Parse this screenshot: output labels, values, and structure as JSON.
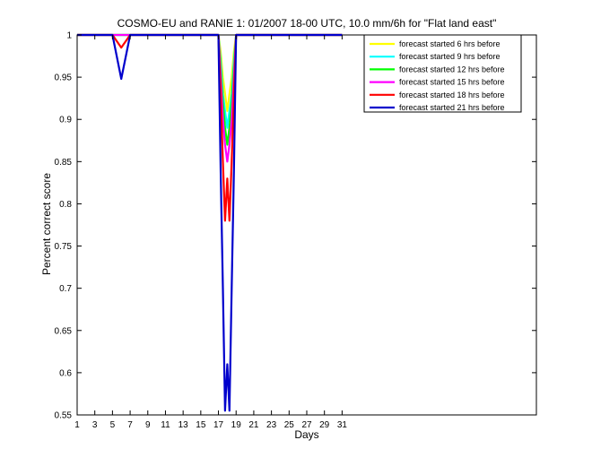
{
  "chart_data": {
    "type": "line",
    "title": "COSMO-EU and RANIE 1: 01/2007 18-00 UTC, 10.0 mm/6h for \"Flat land east\"",
    "xlabel": "Days",
    "ylabel": "Percent correct score",
    "xlim": [
      1,
      53
    ],
    "ylim": [
      0.55,
      1
    ],
    "xticks": [
      "1",
      "3",
      "5",
      "7",
      "9",
      "11",
      "13",
      "15",
      "17",
      "19",
      "21",
      "23",
      "25",
      "27",
      "29",
      "31"
    ],
    "yticks": [
      "0.55",
      "0.6",
      "0.65",
      "0.7",
      "0.75",
      "0.8",
      "0.85",
      "0.9",
      "0.95",
      "1"
    ],
    "grid": false,
    "legend_position": "top-right",
    "x": [
      1,
      2,
      3,
      4,
      5,
      6,
      7,
      8,
      9,
      10,
      11,
      12,
      13,
      14,
      15,
      16,
      17,
      17.25,
      17.5,
      17.75,
      18,
      18.25,
      18.5,
      18.75,
      19,
      20,
      21,
      22,
      23,
      24,
      25,
      26,
      27,
      28,
      29,
      30,
      31
    ],
    "series": [
      {
        "name": "forecast started 6 hrs before",
        "color": "#ffff00",
        "values": [
          1,
          1,
          1,
          1,
          1,
          1,
          1,
          1,
          1,
          1,
          1,
          1,
          1,
          1,
          1,
          1,
          1,
          0.98,
          0.95,
          0.93,
          0.91,
          0.93,
          0.95,
          0.98,
          1,
          1,
          1,
          1,
          1,
          1,
          1,
          1,
          1,
          1,
          1,
          1,
          1
        ]
      },
      {
        "name": "forecast started 9 hrs before",
        "color": "#00ffff",
        "values": [
          1,
          1,
          1,
          1,
          1,
          1,
          1,
          1,
          1,
          1,
          1,
          1,
          1,
          1,
          1,
          1,
          1,
          0.97,
          0.93,
          0.91,
          0.89,
          0.91,
          0.93,
          0.97,
          1,
          1,
          1,
          1,
          1,
          1,
          1,
          1,
          1,
          1,
          1,
          1,
          1
        ]
      },
      {
        "name": "forecast started 12 hrs before",
        "color": "#00ff00",
        "values": [
          1,
          1,
          1,
          1,
          1,
          1,
          1,
          1,
          1,
          1,
          1,
          1,
          1,
          1,
          1,
          1,
          1,
          0.96,
          0.92,
          0.89,
          0.87,
          0.89,
          0.92,
          0.96,
          1,
          1,
          1,
          1,
          1,
          1,
          1,
          1,
          1,
          1,
          1,
          1,
          1
        ]
      },
      {
        "name": "forecast started 15 hrs before",
        "color": "#ff00ff",
        "values": [
          1,
          1,
          1,
          1,
          1,
          1,
          1,
          1,
          1,
          1,
          1,
          1,
          1,
          1,
          1,
          1,
          1,
          0.95,
          0.9,
          0.87,
          0.85,
          0.87,
          0.9,
          0.95,
          1,
          1,
          1,
          1,
          1,
          1,
          1,
          1,
          1,
          1,
          1,
          1,
          1
        ]
      },
      {
        "name": "forecast started 18 hrs before",
        "color": "#ff0000",
        "values": [
          1,
          1,
          1,
          1,
          1,
          0.985,
          1,
          1,
          1,
          1,
          1,
          1,
          1,
          1,
          1,
          1,
          1,
          0.93,
          0.85,
          0.78,
          0.83,
          0.78,
          0.85,
          0.93,
          1,
          1,
          1,
          1,
          1,
          1,
          1,
          1,
          1,
          1,
          1,
          1,
          1
        ]
      },
      {
        "name": "forecast started 21 hrs before",
        "color": "#0000cc",
        "values": [
          1,
          1,
          1,
          1,
          1,
          0.948,
          1,
          1,
          1,
          1,
          1,
          1,
          1,
          1,
          1,
          1,
          1,
          0.84,
          0.7,
          0.555,
          0.61,
          0.555,
          0.7,
          0.84,
          1,
          1,
          1,
          1,
          1,
          1,
          1,
          1,
          1,
          1,
          1,
          1,
          1
        ]
      }
    ]
  }
}
